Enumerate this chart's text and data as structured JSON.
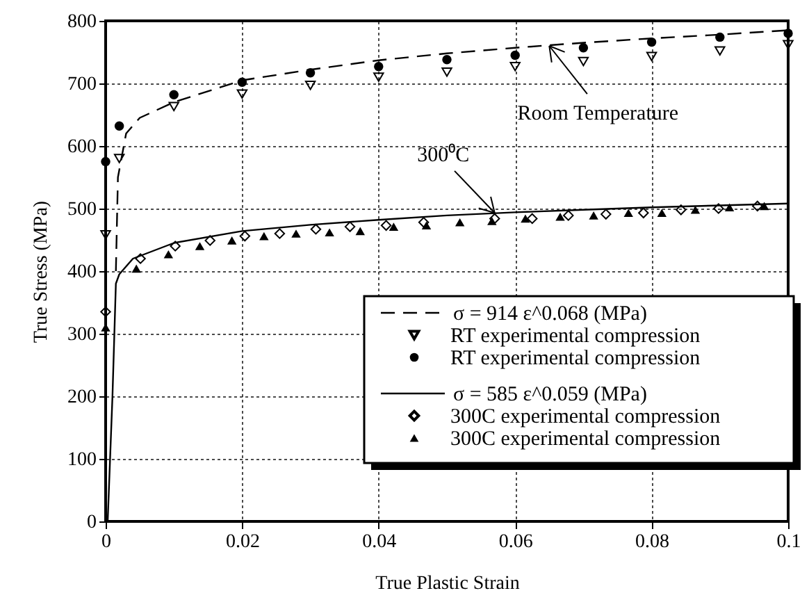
{
  "chart_data": {
    "type": "scatter",
    "xlabel": "True Plastic Strain",
    "ylabel": "True Stress (MPa)",
    "xlim": [
      0,
      0.1
    ],
    "ylim": [
      0,
      800
    ],
    "xticks": [
      0,
      0.02,
      0.04,
      0.06,
      0.08,
      0.1
    ],
    "yticks": [
      0,
      100,
      200,
      300,
      400,
      500,
      600,
      700,
      800
    ],
    "grid": true,
    "legend": "bottom right",
    "series": [
      {
        "name": "σ = 914 ε^0.068 (MPa)",
        "type": "line",
        "line_style": "dashed",
        "color": "#000000",
        "x": [
          0.0015,
          0.0018,
          0.003,
          0.005,
          0.01,
          0.02,
          0.03,
          0.04,
          0.05,
          0.06,
          0.07,
          0.08,
          0.09,
          0.1
        ],
        "values": [
          400,
          550,
          620,
          645,
          670,
          705,
          722,
          737,
          748,
          757,
          765,
          772,
          778,
          785
        ]
      },
      {
        "name": "RT experimental compression",
        "marker": "triangle-down",
        "color": "#000000",
        "x": [
          0,
          0.002,
          0.01,
          0.02,
          0.03,
          0.04,
          0.05,
          0.06,
          0.07,
          0.08,
          0.09,
          0.1
        ],
        "values": [
          458,
          580,
          663,
          683,
          697,
          710,
          718,
          727,
          735,
          743,
          752,
          762
        ]
      },
      {
        "name": "RT experimental compression",
        "marker": "circle",
        "color": "#000000",
        "x": [
          0,
          0.002,
          0.01,
          0.02,
          0.03,
          0.04,
          0.05,
          0.06,
          0.07,
          0.08,
          0.09,
          0.1
        ],
        "values": [
          575,
          632,
          682,
          702,
          717,
          727,
          738,
          745,
          757,
          766,
          774,
          780
        ]
      },
      {
        "name": "σ = 585 ε^0.059 (MPa)",
        "type": "line",
        "line_style": "solid",
        "color": "#000000",
        "x": [
          0.0003,
          0.001,
          0.0015,
          0.002,
          0.004,
          0.01,
          0.02,
          0.03,
          0.04,
          0.05,
          0.06,
          0.07,
          0.08,
          0.09,
          0.1
        ],
        "values": [
          0,
          200,
          380,
          395,
          420,
          445,
          464,
          474,
          482,
          489,
          494,
          498,
          502,
          505,
          508
        ]
      },
      {
        "name": "300C experimental compression",
        "marker": "diamond",
        "color": "#000000",
        "x": [
          0,
          0.0051,
          0.0102,
          0.0153,
          0.0204,
          0.0255,
          0.0308,
          0.0358,
          0.0411,
          0.0466,
          0.057,
          0.0625,
          0.0678,
          0.0733,
          0.0788,
          0.0843,
          0.0898,
          0.0955
        ],
        "values": [
          335,
          420,
          440,
          449,
          456,
          460,
          467,
          471,
          473,
          478,
          484,
          484,
          489,
          491,
          493,
          498,
          500,
          504
        ]
      },
      {
        "name": "300C experimental compression",
        "marker": "triangle",
        "color": "#000000",
        "x": [
          0,
          0.0045,
          0.0092,
          0.0138,
          0.0185,
          0.0232,
          0.0279,
          0.0328,
          0.0373,
          0.0422,
          0.047,
          0.0519,
          0.0566,
          0.0615,
          0.0666,
          0.0715,
          0.0766,
          0.0815,
          0.0864,
          0.0914,
          0.0965
        ],
        "values": [
          310,
          404,
          427,
          440,
          449,
          456,
          460,
          462,
          464,
          471,
          473,
          478,
          480,
          484,
          487,
          489,
          493,
          493,
          498,
          502,
          504
        ]
      }
    ],
    "annotations": [
      {
        "text": "Room Temperature",
        "x": 0.065,
        "y": 760
      },
      {
        "text": "300⁰C",
        "x": 0.057,
        "y": 493
      }
    ]
  }
}
